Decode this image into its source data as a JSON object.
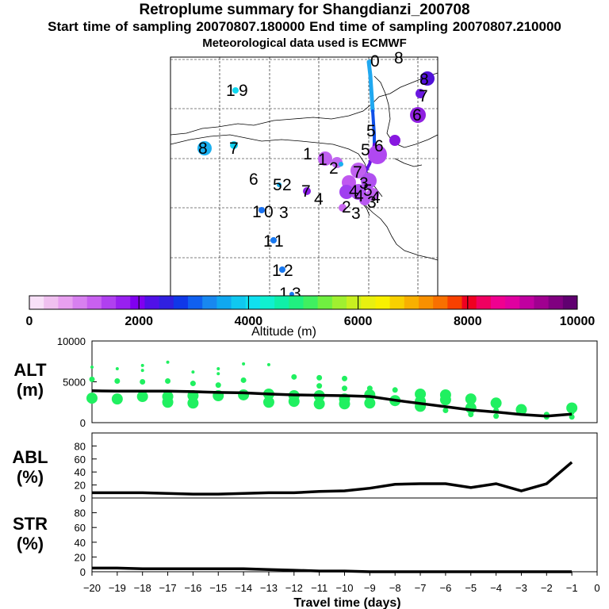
{
  "header": {
    "title": "Retroplume summary for Shangdianzi_200708",
    "sampling": "Start time of sampling 20070807.180000     End time of sampling 20070807.210000",
    "met": "Meteorological data used is ECMWF"
  },
  "colorbar": {
    "ticks": [
      "0",
      "2000",
      "4000",
      "6000",
      "8000",
      "10000"
    ],
    "label": "Altitude (m)",
    "colors": [
      "#f8e0f8",
      "#f0c0f0",
      "#e8a0f0",
      "#d880f0",
      "#c860f0",
      "#b040f0",
      "#9820f0",
      "#8000f0",
      "#5010e8",
      "#3020e0",
      "#1038e8",
      "#1060f0",
      "#1888f0",
      "#10a8f0",
      "#10c8f0",
      "#10e0f0",
      "#10f0d0",
      "#10f0a8",
      "#20f080",
      "#40f060",
      "#70f040",
      "#a0f030",
      "#c8f020",
      "#e8f010",
      "#f8f000",
      "#f8d000",
      "#f8b000",
      "#f89000",
      "#f87000",
      "#f84000",
      "#f00020",
      "#f00060",
      "#f00090",
      "#e000a0",
      "#c000a0",
      "#a00090",
      "#800080",
      "#600070"
    ]
  },
  "map_labels": [
    "1",
    "9",
    "8",
    "7",
    "6",
    "5",
    "2",
    "1",
    "0",
    "3",
    "7",
    "4",
    "1",
    "1",
    "1",
    "2",
    "1",
    "3",
    "1",
    "1",
    "2",
    "5",
    "7",
    "3",
    "4",
    "5",
    "4",
    "2",
    "3",
    "3",
    "4",
    "6",
    "5",
    "6",
    "7",
    "8",
    "0",
    "8"
  ],
  "chart_data": [
    {
      "type": "line",
      "panel": "ALT",
      "ylabel": "ALT\n(m)",
      "ylabel_lines": [
        "ALT",
        "(m)"
      ],
      "ylim": [
        0,
        10000
      ],
      "yticks": [
        "10000",
        "5000",
        "0"
      ],
      "x": [
        -20,
        -19,
        -18,
        -17,
        -16,
        -15,
        -14,
        -13,
        -12,
        -11,
        -10,
        -9,
        -8,
        -7,
        -6,
        -5,
        -4,
        -3,
        -2,
        -1
      ],
      "series": [
        {
          "name": "mean altitude",
          "values": [
            3900,
            3850,
            3850,
            3850,
            3800,
            3700,
            3650,
            3500,
            3400,
            3350,
            3300,
            3200,
            2750,
            2350,
            1950,
            1550,
            1300,
            1000,
            800,
            1050
          ]
        }
      ],
      "spread_color": "#20f060",
      "spread_points": [
        {
          "x": -20,
          "y": 6800
        },
        {
          "x": -20,
          "y": 5300
        },
        {
          "x": -20,
          "y": 3000
        },
        {
          "x": -19,
          "y": 6600
        },
        {
          "x": -19,
          "y": 5100
        },
        {
          "x": -19,
          "y": 2900
        },
        {
          "x": -18,
          "y": 7000
        },
        {
          "x": -18,
          "y": 6400
        },
        {
          "x": -18,
          "y": 5000
        },
        {
          "x": -18,
          "y": 3200
        },
        {
          "x": -17,
          "y": 7400
        },
        {
          "x": -17,
          "y": 5100
        },
        {
          "x": -17,
          "y": 3200
        },
        {
          "x": -17,
          "y": 2500
        },
        {
          "x": -16,
          "y": 6200
        },
        {
          "x": -16,
          "y": 4800
        },
        {
          "x": -16,
          "y": 3300
        },
        {
          "x": -16,
          "y": 2400
        },
        {
          "x": -15,
          "y": 6600
        },
        {
          "x": -15,
          "y": 6000
        },
        {
          "x": -15,
          "y": 4600
        },
        {
          "x": -15,
          "y": 3300
        },
        {
          "x": -14,
          "y": 7200
        },
        {
          "x": -14,
          "y": 5200
        },
        {
          "x": -14,
          "y": 3400
        },
        {
          "x": -13,
          "y": 7100
        },
        {
          "x": -13,
          "y": 3500
        },
        {
          "x": -13,
          "y": 2500
        },
        {
          "x": -12,
          "y": 5600
        },
        {
          "x": -12,
          "y": 3300
        },
        {
          "x": -12,
          "y": 2600
        },
        {
          "x": -11,
          "y": 5500
        },
        {
          "x": -11,
          "y": 4500
        },
        {
          "x": -11,
          "y": 3300
        },
        {
          "x": -11,
          "y": 2300
        },
        {
          "x": -10,
          "y": 5400
        },
        {
          "x": -10,
          "y": 4200
        },
        {
          "x": -10,
          "y": 2900
        },
        {
          "x": -10,
          "y": 2300
        },
        {
          "x": -9,
          "y": 4200
        },
        {
          "x": -9,
          "y": 3400
        },
        {
          "x": -9,
          "y": 2400
        },
        {
          "x": -8,
          "y": 4000
        },
        {
          "x": -8,
          "y": 2700
        },
        {
          "x": -7,
          "y": 3500
        },
        {
          "x": -7,
          "y": 2600
        },
        {
          "x": -7,
          "y": 2000
        },
        {
          "x": -6,
          "y": 3400
        },
        {
          "x": -6,
          "y": 2800
        },
        {
          "x": -6,
          "y": 1500
        },
        {
          "x": -5,
          "y": 2900
        },
        {
          "x": -5,
          "y": 1800
        },
        {
          "x": -5,
          "y": 1000
        },
        {
          "x": -4,
          "y": 2400
        },
        {
          "x": -4,
          "y": 1500
        },
        {
          "x": -4,
          "y": 800
        },
        {
          "x": -3,
          "y": 1600
        },
        {
          "x": -3,
          "y": 1200
        },
        {
          "x": -2,
          "y": 1000
        },
        {
          "x": -2,
          "y": 700
        },
        {
          "x": -1,
          "y": 1800
        },
        {
          "x": -1,
          "y": 1300
        },
        {
          "x": -1,
          "y": 700
        }
      ]
    },
    {
      "type": "line",
      "panel": "ABL",
      "ylabel": "ABL\n(%)",
      "ylabel_lines": [
        "ABL",
        "(%)"
      ],
      "ylim": [
        0,
        100
      ],
      "yticks": [
        "80",
        "60",
        "40",
        "20",
        "0"
      ],
      "x": [
        -20,
        -19,
        -18,
        -17,
        -16,
        -15,
        -14,
        -13,
        -12,
        -11,
        -10,
        -9,
        -8,
        -7,
        -6,
        -5,
        -4,
        -3,
        -2,
        -1
      ],
      "series": [
        {
          "name": "ABL fraction",
          "values": [
            8,
            8,
            8,
            7,
            6,
            6,
            7,
            8,
            8,
            10,
            11,
            15,
            21,
            22,
            22,
            16,
            22,
            11,
            22,
            55
          ]
        }
      ]
    },
    {
      "type": "line",
      "panel": "STR",
      "ylabel": "STR\n(%)",
      "ylabel_lines": [
        "STR",
        "(%)"
      ],
      "ylim": [
        0,
        100
      ],
      "yticks": [
        "80",
        "60",
        "40",
        "20",
        "0"
      ],
      "x": [
        -20,
        -19,
        -18,
        -17,
        -16,
        -15,
        -14,
        -13,
        -12,
        -11,
        -10,
        -9,
        -8,
        -7,
        -6,
        -5,
        -4,
        -3,
        -2,
        -1
      ],
      "series": [
        {
          "name": "stratospheric fraction",
          "values": [
            5,
            5,
            4,
            4,
            4,
            4,
            4,
            3,
            2,
            1,
            1,
            0,
            0,
            0,
            0,
            0,
            0,
            0,
            0,
            0
          ]
        }
      ],
      "xlabel": "Travel time (days)",
      "xticks": [
        "−20",
        "−19",
        "−18",
        "−17",
        "−16",
        "−15",
        "−14",
        "−13",
        "−12",
        "−11",
        "−10",
        "−9",
        "−8",
        "−7",
        "−6",
        "−5",
        "−4",
        "−3",
        "−2",
        "−1",
        "0"
      ]
    }
  ]
}
